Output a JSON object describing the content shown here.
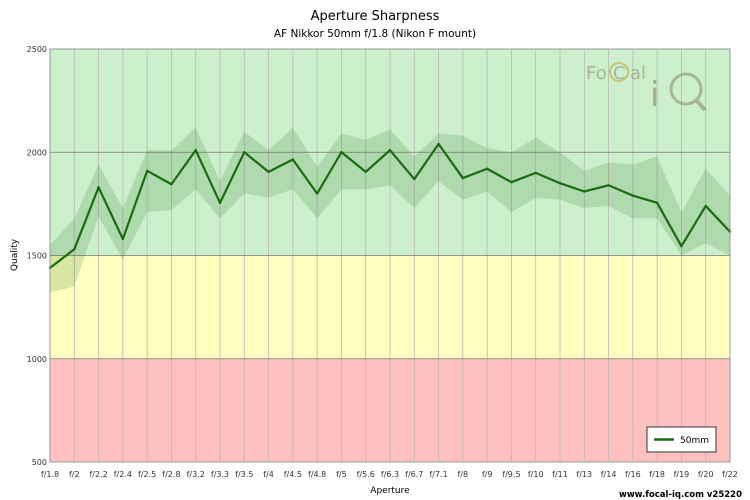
{
  "chart_data": {
    "type": "line",
    "title": "Aperture Sharpness",
    "subtitle": "AF Nikkor 50mm f/1.8 (Nikon F mount)",
    "xlabel": "Aperture",
    "ylabel": "Quality",
    "ylim": [
      500,
      2500
    ],
    "yticks": [
      "500",
      "1000",
      "1500",
      "2000",
      "2500"
    ],
    "categories": [
      "f/1.8",
      "f/2",
      "f/2.2",
      "f/2.4",
      "f/2.5",
      "f/2.8",
      "f/3.2",
      "f/3.3",
      "f/3.5",
      "f/4",
      "f/4.5",
      "f/4.8",
      "f/5",
      "f/5.6",
      "f/6.3",
      "f/6.7",
      "f/7.1",
      "f/8",
      "f/9",
      "f/9.5",
      "f/10",
      "f/11",
      "f/13",
      "f/14",
      "f/16",
      "f/18",
      "f/19",
      "f/20",
      "f/22"
    ],
    "series": [
      {
        "name": "50mm",
        "color": "#1a6b12",
        "values": [
          1440,
          1530,
          1830,
          1580,
          1910,
          1845,
          2010,
          1755,
          2000,
          1905,
          1965,
          1800,
          2000,
          1905,
          2010,
          1870,
          2040,
          1875,
          1920,
          1855,
          1900,
          1850,
          1810,
          1840,
          1790,
          1755,
          1545,
          1740,
          1615
        ],
        "band_high": [
          1550,
          1680,
          1940,
          1730,
          2010,
          2010,
          2120,
          1860,
          2100,
          2010,
          2120,
          1930,
          2090,
          2060,
          2110,
          1980,
          2090,
          2080,
          2020,
          2000,
          2070,
          2000,
          1910,
          1950,
          1940,
          1980,
          1710,
          1920,
          1790
        ],
        "band_low": [
          1320,
          1350,
          1690,
          1480,
          1710,
          1720,
          1820,
          1680,
          1800,
          1780,
          1820,
          1680,
          1820,
          1820,
          1840,
          1730,
          1860,
          1770,
          1810,
          1710,
          1780,
          1770,
          1730,
          1740,
          1680,
          1680,
          1500,
          1560,
          1500
        ]
      }
    ],
    "zones": [
      {
        "from": 1500,
        "to": 2500,
        "color": "#ccf0cc"
      },
      {
        "from": 1000,
        "to": 1500,
        "color": "#ffffc0"
      },
      {
        "from": 500,
        "to": 1000,
        "color": "#ffc0c0"
      }
    ],
    "grid": true,
    "legend_position": "bottom-right"
  },
  "footer": "www.focal-iq.com  v25220",
  "logo": {
    "text": "FoCal iQ"
  }
}
